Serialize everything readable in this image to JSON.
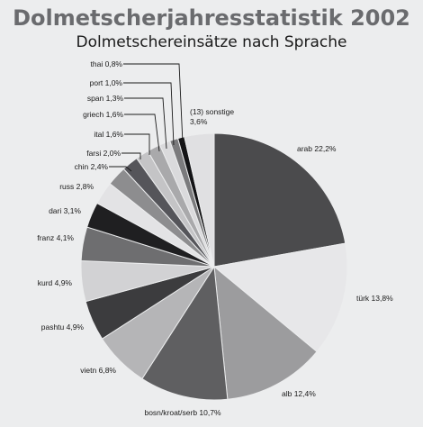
{
  "chart_data": {
    "type": "pie",
    "title": "Dolmetscherjahresstatistik 2002",
    "subtitle": "Dolmetschereinsätze nach Sprache",
    "slices": [
      {
        "label": "arab 22,2%",
        "value": 22.2,
        "color": "#4b4b4d"
      },
      {
        "label": "türk 13,8%",
        "value": 13.8,
        "color": "#e7e7e9"
      },
      {
        "label": "alb 12,4%",
        "value": 12.4,
        "color": "#9c9c9e"
      },
      {
        "label": "bosn/kroat/serb 10,7%",
        "value": 10.7,
        "color": "#5f5f61"
      },
      {
        "label": "vietn 6,8%",
        "value": 6.8,
        "color": "#b5b5b7"
      },
      {
        "label": "pashtu 4,9%",
        "value": 4.9,
        "color": "#3c3c3e"
      },
      {
        "label": "kurd 4,9%",
        "value": 4.9,
        "color": "#d2d2d4"
      },
      {
        "label": "franz 4,1%",
        "value": 4.1,
        "color": "#6e6e70"
      },
      {
        "label": "dari 3,1%",
        "value": 3.1,
        "color": "#1f1f21"
      },
      {
        "label": "russ 2,8%",
        "value": 2.8,
        "color": "#e3e3e5"
      },
      {
        "label": "chin 2,4%",
        "value": 2.4,
        "color": "#8d8d8f"
      },
      {
        "label": "farsi 2,0%",
        "value": 2.0,
        "color": "#55555a"
      },
      {
        "label": "ital 1,6%",
        "value": 1.6,
        "color": "#c4c4c6"
      },
      {
        "label": "griech 1,6%",
        "value": 1.6,
        "color": "#a9a9ab"
      },
      {
        "label": "span 1,3%",
        "value": 1.3,
        "color": "#dadadc"
      },
      {
        "label": "port 1,0%",
        "value": 1.0,
        "color": "#7b7b7d"
      },
      {
        "label": "thai 0,8%",
        "value": 0.8,
        "color": "#141416"
      },
      {
        "label": "(13) sonstige",
        "label2": "3,6%",
        "value": 3.6,
        "color": "#e0e0e2"
      }
    ]
  }
}
